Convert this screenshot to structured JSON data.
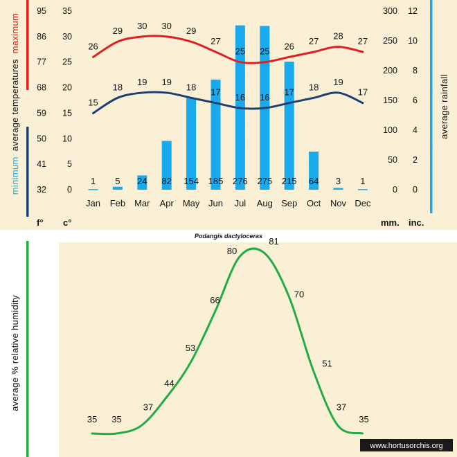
{
  "chart_data": [
    {
      "type": "bar+line",
      "categories": [
        "Jan",
        "Feb",
        "Mar",
        "Apr",
        "May",
        "Jun",
        "Jul",
        "Aug",
        "Sep",
        "Oct",
        "Nov",
        "Dec"
      ],
      "series": [
        {
          "name": "maximum",
          "kind": "line",
          "unit": "c°",
          "color": "#e02020",
          "values": [
            26,
            29,
            30,
            30,
            29,
            27,
            25,
            25,
            26,
            27,
            28,
            27
          ]
        },
        {
          "name": "minimum",
          "kind": "line",
          "unit": "c°",
          "color": "#1f3f73",
          "values": [
            15,
            18,
            19,
            19,
            18,
            17,
            16,
            16,
            17,
            18,
            19,
            17
          ]
        },
        {
          "name": "rainfall",
          "kind": "bar",
          "unit": "mm.",
          "color": "#19aaee",
          "values": [
            1,
            5,
            24,
            82,
            154,
            185,
            276,
            275,
            215,
            64,
            3,
            1
          ]
        }
      ],
      "axes": {
        "fahrenheit": {
          "unit": "f°",
          "ticks": [
            "95",
            "86",
            "77",
            "68",
            "59",
            "50",
            "41",
            "32"
          ]
        },
        "celsius": {
          "unit": "c°",
          "ylim": [
            0,
            35
          ],
          "ticks": [
            "35",
            "30",
            "25",
            "20",
            "15",
            "10",
            "5",
            "0"
          ]
        },
        "millimetres": {
          "unit": "mm.",
          "ylim": [
            0,
            300
          ],
          "ticks": [
            "300",
            "250",
            "200",
            "150",
            "100",
            "50",
            "0"
          ]
        },
        "inches": {
          "unit": "inc.",
          "ylim": [
            0,
            12
          ],
          "ticks": [
            "12",
            "10",
            "8",
            "6",
            "4",
            "2",
            "0"
          ]
        }
      },
      "left_title": {
        "main": "average temperatures",
        "max_word": "maximum",
        "min_word": "minimum"
      },
      "right_title": "average rainfall"
    },
    {
      "type": "line",
      "categories": [
        "Jan",
        "Feb",
        "Mar",
        "Apr",
        "May",
        "Jun",
        "Jul",
        "Aug",
        "Sep",
        "Oct",
        "Nov",
        "Dec"
      ],
      "series": [
        {
          "name": "relative humidity",
          "color": "#22aa44",
          "values": [
            35,
            35,
            37,
            44,
            53,
            66,
            80,
            81,
            70,
            51,
            37,
            35
          ]
        }
      ],
      "ylabel": "average %  relative humidity"
    }
  ],
  "species": "Podangis dactyloceras",
  "credit": "www.hortusorchis.org",
  "colors": {
    "background": "#fcf3d9",
    "max_bar": "#e02020",
    "min_bar": "#1f3f73",
    "rain_bar": "#19aaee",
    "humidity_bar": "#22aa44"
  }
}
